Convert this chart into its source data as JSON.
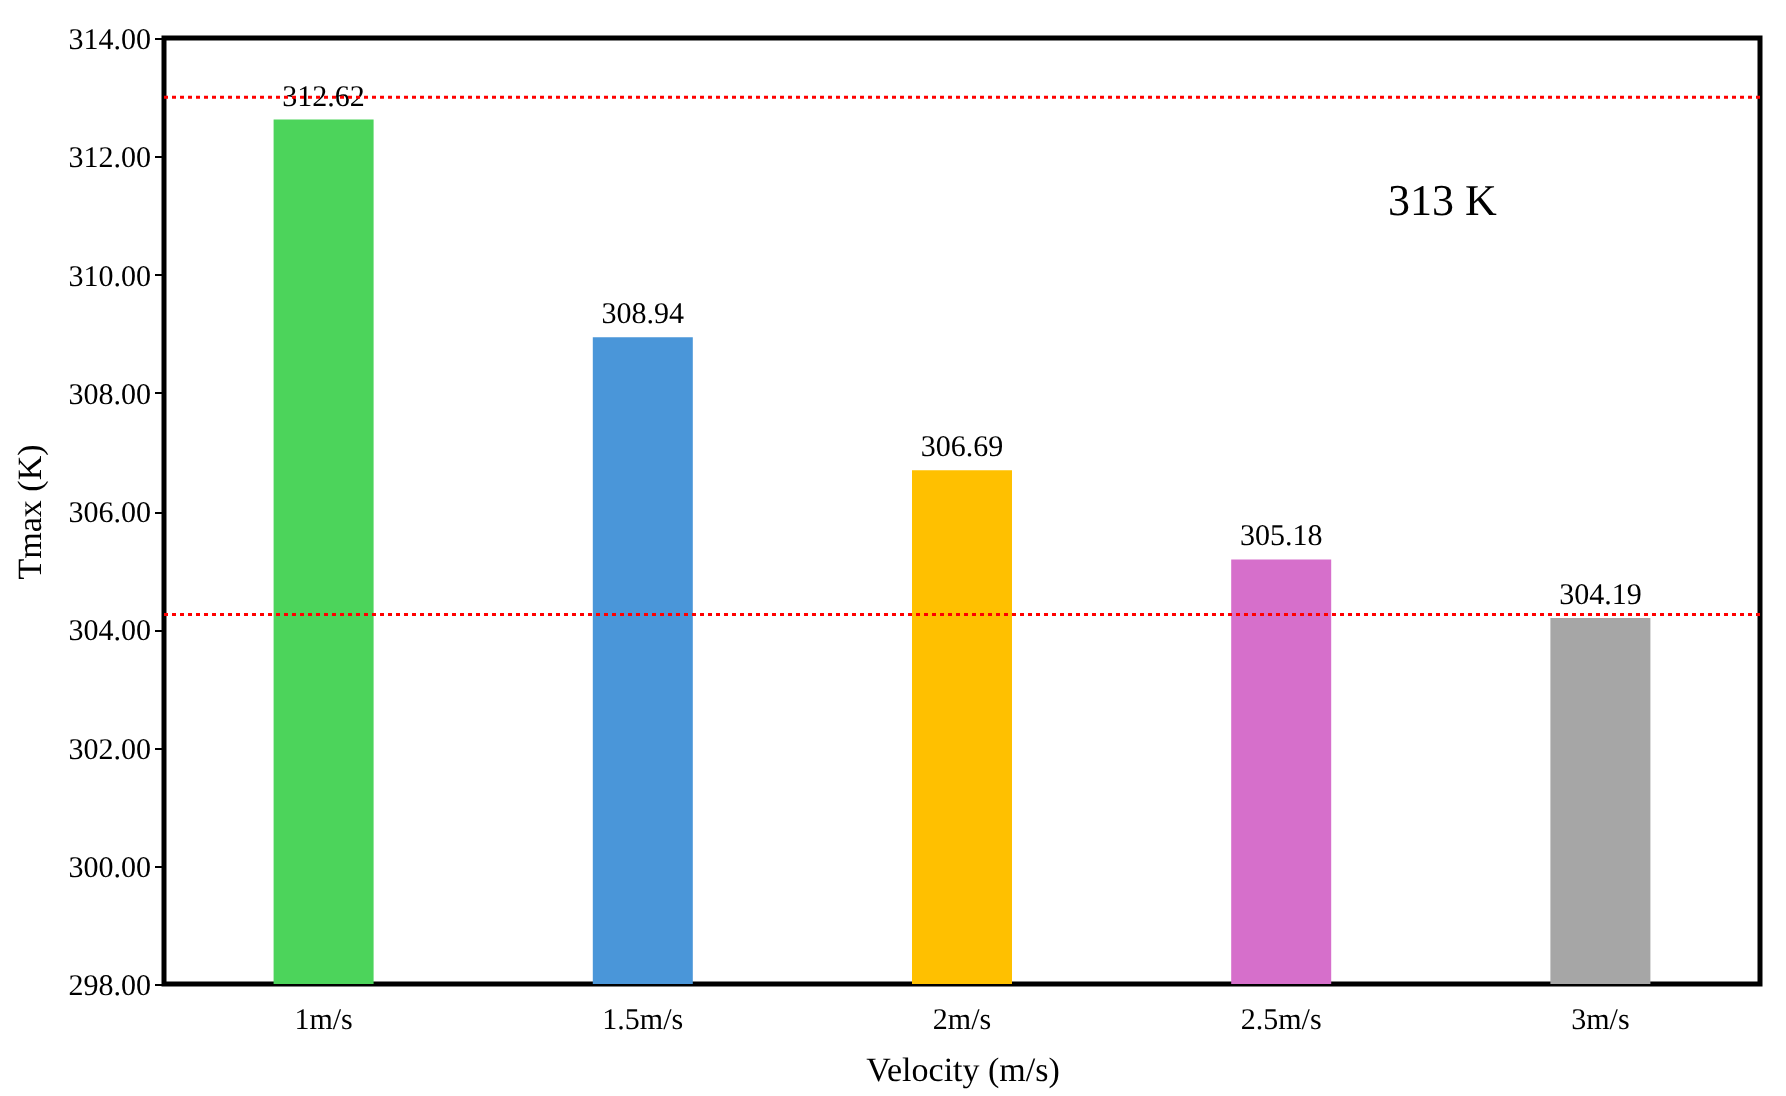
{
  "chart_data": {
    "type": "bar",
    "xlabel": "Velocity (m/s)",
    "ylabel": "Tmax (K)",
    "categories": [
      "1m/s",
      "1.5m/s",
      "2m/s",
      "2.5m/s",
      "3m/s"
    ],
    "values": [
      312.62,
      308.94,
      306.69,
      305.18,
      304.19
    ],
    "colors": [
      "#4cd45b",
      "#4a96d9",
      "#ffc000",
      "#d66fcb",
      "#a6a6a6"
    ],
    "ylim": [
      298,
      314
    ],
    "yticks": [
      {
        "value": 298,
        "label": "298.00"
      },
      {
        "value": 300,
        "label": "300.00"
      },
      {
        "value": 302,
        "label": "302.00"
      },
      {
        "value": 304,
        "label": "304.00"
      },
      {
        "value": 306,
        "label": "306.00"
      },
      {
        "value": 308,
        "label": "308.00"
      },
      {
        "value": 310,
        "label": "310.00"
      },
      {
        "value": 312,
        "label": "312.00"
      },
      {
        "value": 314,
        "label": "314.00"
      }
    ],
    "ref_lines": [
      {
        "axis": "y",
        "value": 313,
        "label": "313 K",
        "color": "#ff0000",
        "line_style": "dotted"
      },
      {
        "axis": "y",
        "value": 304.25,
        "color": "#ff0000",
        "line_style": "dotted"
      }
    ],
    "data_labels": true,
    "grid": false
  }
}
